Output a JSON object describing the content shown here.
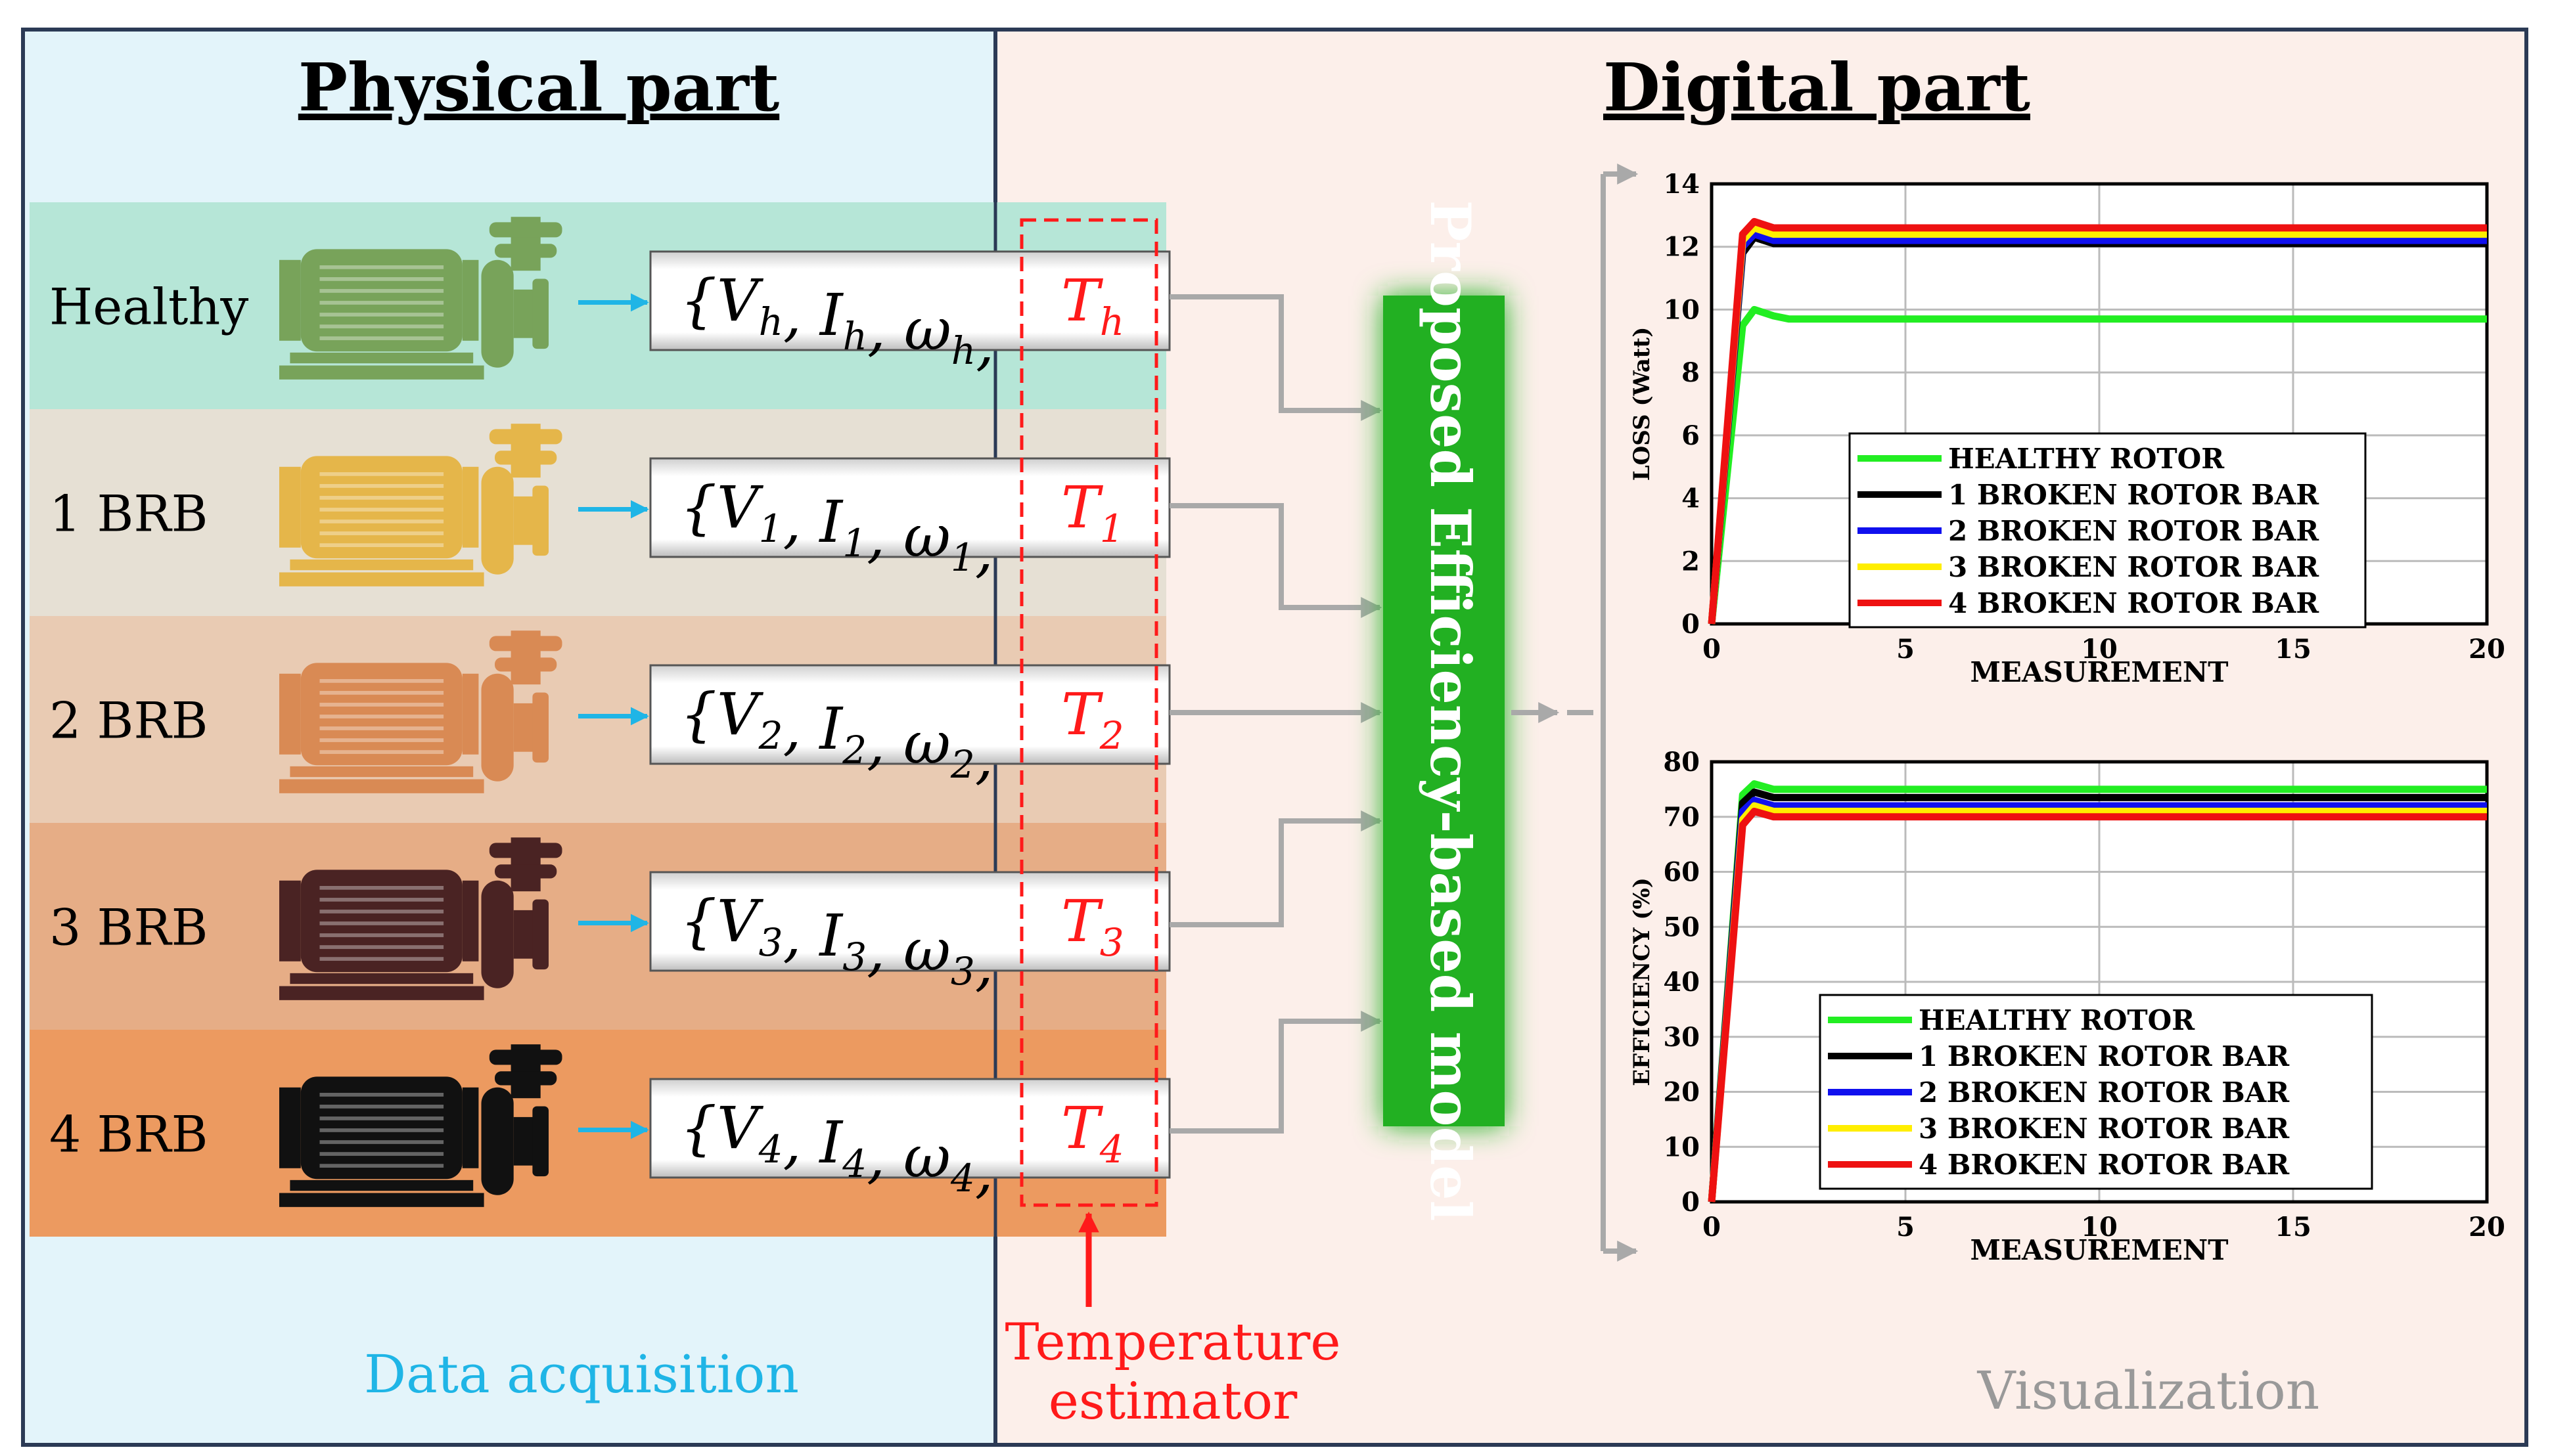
{
  "physical_title": "Physical part",
  "digital_title": "Digital part",
  "rows": [
    {
      "label": "Healthy",
      "color": "#78a35a",
      "band": "#b6e6d7",
      "sub": "h"
    },
    {
      "label": "1 BRB",
      "color": "#e5b64a",
      "band": "#e6e0d4",
      "sub": "1"
    },
    {
      "label": "2 BRB",
      "color": "#d98a54",
      "band": "#e9cbb3",
      "sub": "2"
    },
    {
      "label": "3 BRB",
      "color": "#4a2323",
      "band": "#e6ad86",
      "sub": "3"
    },
    {
      "label": "4 BRB",
      "color": "#111111",
      "band": "#ec9a60",
      "sub": "4"
    }
  ],
  "data_acquisition": "Data acquisition",
  "temperature_estimator": [
    "Temperature",
    "estimator"
  ],
  "model_label": "Proposed Efficiency-based model",
  "visualization": "Visualization",
  "colors": {
    "left_bg": "#e3f4fa",
    "right_bg": "#fcefea",
    "model_green": "#22b024",
    "red": "#ff1a1a",
    "cyan": "#1fb5e6",
    "healthy": "#22ee22",
    "brb1": "#000000",
    "brb2": "#1010ee",
    "brb3": "#ffee00",
    "brb4": "#ee1111"
  },
  "chart_data": [
    {
      "type": "line",
      "xlabel": "MEASUREMENT",
      "ylabel": "LOSS (Watt)",
      "xlim": [
        0,
        20
      ],
      "ylim": [
        0,
        14
      ],
      "xticks": [
        0,
        5,
        10,
        15,
        20
      ],
      "yticks": [
        0,
        2,
        4,
        6,
        8,
        10,
        12,
        14
      ],
      "grid": true,
      "legend_position": "center-right",
      "series": [
        {
          "name": "HEALTHY ROTOR",
          "color": "#22ee22",
          "x": [
            0,
            0.8,
            1.1,
            1.6,
            2,
            20
          ],
          "y": [
            0,
            9.5,
            10.0,
            9.8,
            9.7,
            9.7
          ]
        },
        {
          "name": "1 BROKEN ROTOR BAR",
          "color": "#000000",
          "x": [
            0,
            0.8,
            1.1,
            1.6,
            2,
            20
          ],
          "y": [
            0,
            11.8,
            12.3,
            12.1,
            12.1,
            12.1
          ]
        },
        {
          "name": "2 BROKEN ROTOR BAR",
          "color": "#1010ee",
          "x": [
            0,
            0.8,
            1.1,
            1.6,
            2,
            20
          ],
          "y": [
            0,
            12.0,
            12.4,
            12.2,
            12.2,
            12.2
          ]
        },
        {
          "name": "3 BROKEN ROTOR BAR",
          "color": "#ffee00",
          "x": [
            0,
            0.8,
            1.1,
            1.6,
            2,
            20
          ],
          "y": [
            0,
            12.2,
            12.6,
            12.4,
            12.4,
            12.4
          ]
        },
        {
          "name": "4 BROKEN ROTOR BAR",
          "color": "#ee1111",
          "x": [
            0,
            0.8,
            1.1,
            1.6,
            2,
            20
          ],
          "y": [
            0,
            12.4,
            12.8,
            12.6,
            12.6,
            12.6
          ]
        }
      ]
    },
    {
      "type": "line",
      "xlabel": "MEASUREMENT",
      "ylabel": "EFFICIENCY (%)",
      "xlim": [
        0,
        20
      ],
      "ylim": [
        0,
        80
      ],
      "xticks": [
        0,
        5,
        10,
        15,
        20
      ],
      "yticks": [
        0,
        10,
        20,
        30,
        40,
        50,
        60,
        70,
        80
      ],
      "grid": true,
      "legend_position": "center-right",
      "series": [
        {
          "name": "HEALTHY ROTOR",
          "color": "#22ee22",
          "x": [
            0,
            0.8,
            1.1,
            1.6,
            2,
            20
          ],
          "y": [
            0,
            74,
            76,
            75,
            75,
            75
          ]
        },
        {
          "name": "1 BROKEN ROTOR BAR",
          "color": "#000000",
          "x": [
            0,
            0.8,
            1.1,
            1.6,
            2,
            20
          ],
          "y": [
            0,
            72.5,
            74.5,
            73.5,
            73.5,
            73.5
          ]
        },
        {
          "name": "2 BROKEN ROTOR BAR",
          "color": "#1010ee",
          "x": [
            0,
            0.8,
            1.1,
            1.6,
            2,
            20
          ],
          "y": [
            0,
            71,
            73,
            72,
            72,
            72
          ]
        },
        {
          "name": "3 BROKEN ROTOR BAR",
          "color": "#ffee00",
          "x": [
            0,
            0.8,
            1.1,
            1.6,
            2,
            20
          ],
          "y": [
            0,
            69.5,
            72,
            71,
            71,
            71
          ]
        },
        {
          "name": "4 BROKEN ROTOR BAR",
          "color": "#ee1111",
          "x": [
            0,
            0.8,
            1.1,
            1.6,
            2,
            20
          ],
          "y": [
            0,
            68.5,
            71,
            70,
            70,
            70
          ]
        }
      ]
    }
  ]
}
